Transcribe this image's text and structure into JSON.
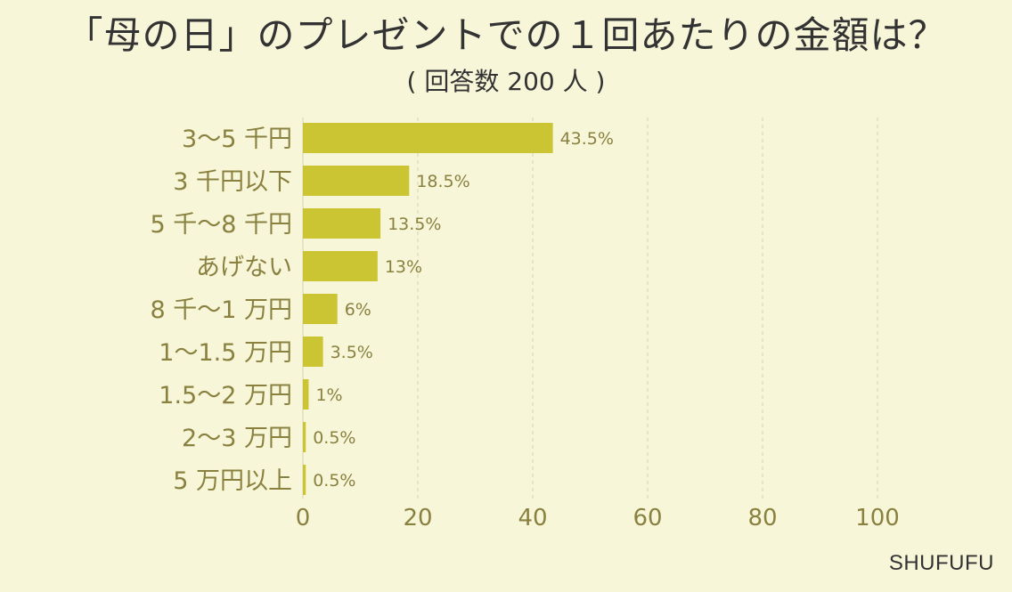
{
  "title": "「母の日」のプレゼントでの１回あたりの金額は？",
  "subtitle": "( 回答数 200 人 )",
  "credit": "SHUFUFU",
  "colors": {
    "background": "#f7f6d8",
    "bar": "#cbc433",
    "category_text": "#8a8140",
    "value_text": "#8a8140",
    "tick_text": "#8a8140",
    "grid": "#dcdab6"
  },
  "chart_data": {
    "type": "bar",
    "orientation": "horizontal",
    "categories": [
      "3～5 千円",
      "3 千円以下",
      "5 千～8 千円",
      "あげない",
      "8 千～1 万円",
      "1～1.5 万円",
      "1.5～2 万円",
      "2～3 万円",
      "5 万円以上"
    ],
    "values": [
      43.5,
      18.5,
      13.5,
      13,
      6,
      3.5,
      1,
      0.5,
      0.5
    ],
    "value_labels": [
      "43.5%",
      "18.5%",
      "13.5%",
      "13%",
      "6%",
      "3.5%",
      "1%",
      "0.5%",
      "0.5%"
    ],
    "xlim": [
      0,
      100
    ],
    "xticks": [
      0,
      20,
      40,
      60,
      80,
      100
    ],
    "grid": true,
    "xlabel": "",
    "ylabel": ""
  }
}
